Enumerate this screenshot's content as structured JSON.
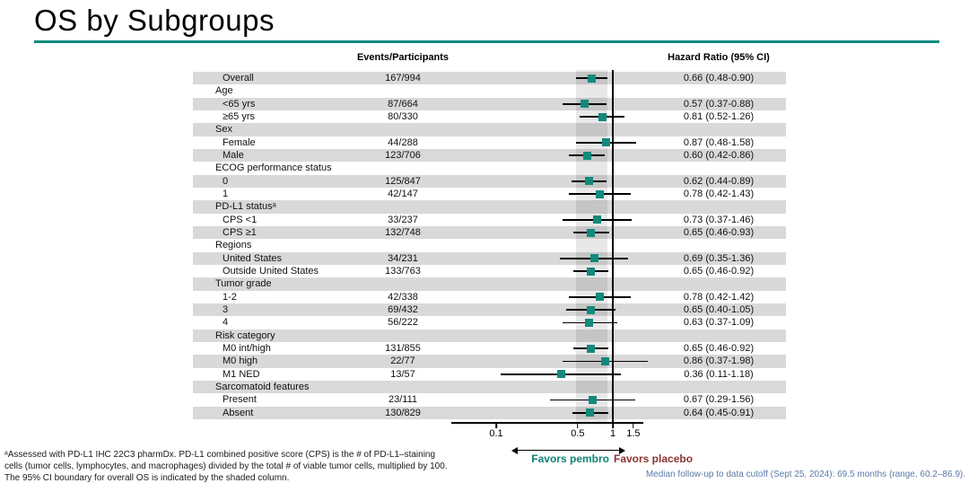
{
  "slide": {
    "title": "OS by Subgroups",
    "accent_color": "#0e8a80"
  },
  "chart_data": {
    "type": "forest",
    "scale": "log",
    "xlim": [
      0.041,
      1.83
    ],
    "x_ticks": [
      0.1,
      0.5,
      1,
      1.5
    ],
    "reference_line": 1.0,
    "shaded_column": {
      "lo": 0.48,
      "hi": 0.9
    },
    "marker_color": "#13897c",
    "band_color": "#d9d9d9",
    "columns": {
      "events": "Events/Participants",
      "hr": "Hazard Ratio (95% CI)"
    },
    "rows": [
      {
        "type": "item",
        "label": "Overall",
        "events": "167/994",
        "hr": 0.66,
        "lo": 0.48,
        "hi": 0.9,
        "hr_text": "0.66 (0.48-0.90)"
      },
      {
        "type": "group",
        "label": "Age"
      },
      {
        "type": "item",
        "label": "<65 yrs",
        "events": "87/664",
        "hr": 0.57,
        "lo": 0.37,
        "hi": 0.88,
        "hr_text": "0.57 (0.37-0.88)"
      },
      {
        "type": "item",
        "label": "≥65 yrs",
        "events": "80/330",
        "hr": 0.81,
        "lo": 0.52,
        "hi": 1.26,
        "hr_text": "0.81 (0.52-1.26)"
      },
      {
        "type": "group",
        "label": "Sex"
      },
      {
        "type": "item",
        "label": "Female",
        "events": "44/288",
        "hr": 0.87,
        "lo": 0.48,
        "hi": 1.58,
        "hr_text": "0.87 (0.48-1.58)"
      },
      {
        "type": "item",
        "label": "Male",
        "events": "123/706",
        "hr": 0.6,
        "lo": 0.42,
        "hi": 0.86,
        "hr_text": "0.60 (0.42-0.86)"
      },
      {
        "type": "group",
        "label": "ECOG performance status"
      },
      {
        "type": "item",
        "label": "0",
        "events": "125/847",
        "hr": 0.62,
        "lo": 0.44,
        "hi": 0.89,
        "hr_text": "0.62 (0.44-0.89)"
      },
      {
        "type": "item",
        "label": "1",
        "events": "42/147",
        "hr": 0.78,
        "lo": 0.42,
        "hi": 1.43,
        "hr_text": "0.78 (0.42-1.43)"
      },
      {
        "type": "group",
        "label": "PD-L1 statusᵃ"
      },
      {
        "type": "item",
        "label": "CPS <1",
        "events": "33/237",
        "hr": 0.73,
        "lo": 0.37,
        "hi": 1.46,
        "hr_text": "0.73 (0.37-1.46)"
      },
      {
        "type": "item",
        "label": "CPS ≥1",
        "events": "132/748",
        "hr": 0.65,
        "lo": 0.46,
        "hi": 0.93,
        "hr_text": "0.65 (0.46-0.93)"
      },
      {
        "type": "group",
        "label": "Regions"
      },
      {
        "type": "item",
        "label": "United States",
        "events": "34/231",
        "hr": 0.69,
        "lo": 0.35,
        "hi": 1.36,
        "hr_text": "0.69 (0.35-1.36)"
      },
      {
        "type": "item",
        "label": "Outside United States",
        "events": "133/763",
        "hr": 0.65,
        "lo": 0.46,
        "hi": 0.92,
        "hr_text": "0.65 (0.46-0.92)"
      },
      {
        "type": "group",
        "label": "Tumor grade"
      },
      {
        "type": "item",
        "label": "1-2",
        "events": "42/338",
        "hr": 0.78,
        "lo": 0.42,
        "hi": 1.42,
        "hr_text": "0.78 (0.42-1.42)"
      },
      {
        "type": "item",
        "label": "3",
        "events": "69/432",
        "hr": 0.65,
        "lo": 0.4,
        "hi": 1.05,
        "hr_text": "0.65 (0.40-1.05)"
      },
      {
        "type": "item",
        "label": "4",
        "events": "56/222",
        "hr": 0.63,
        "lo": 0.37,
        "hi": 1.09,
        "hr_text": "0.63 (0.37-1.09)"
      },
      {
        "type": "group",
        "label": "Risk category"
      },
      {
        "type": "item",
        "label": "M0 int/high",
        "events": "131/855",
        "hr": 0.65,
        "lo": 0.46,
        "hi": 0.92,
        "hr_text": "0.65 (0.46-0.92)"
      },
      {
        "type": "item",
        "label": "M0 high",
        "events": "22/77",
        "hr": 0.86,
        "lo": 0.37,
        "hi": 1.98,
        "hr_text": "0.86 (0.37-1.98)"
      },
      {
        "type": "item",
        "label": "M1 NED",
        "events": "13/57",
        "hr": 0.36,
        "lo": 0.11,
        "hi": 1.18,
        "hr_text": "0.36 (0.11-1.18)"
      },
      {
        "type": "group",
        "label": "Sarcomatoid features"
      },
      {
        "type": "item",
        "label": "Present",
        "events": "23/111",
        "hr": 0.67,
        "lo": 0.29,
        "hi": 1.56,
        "hr_text": "0.67 (0.29-1.56)"
      },
      {
        "type": "item",
        "label": "Absent",
        "events": "130/829",
        "hr": 0.64,
        "lo": 0.45,
        "hi": 0.91,
        "hr_text": "0.64 (0.45-0.91)"
      }
    ]
  },
  "favors": {
    "left": "Favors pembro",
    "right": "Favors placebo",
    "left_color": "#0e8276",
    "right_color": "#8c3332"
  },
  "footnotes": {
    "left": [
      "ᵃAssessed with PD-L1 IHC 22C3 pharmDx. PD-L1 combined positive score (CPS) is the # of PD-L1–staining",
      "cells (tumor cells, lymphocytes, and macrophages) divided by the total # of viable tumor cells, multiplied by 100.",
      "The 95% CI boundary for overall OS is indicated by the shaded column."
    ],
    "right": "Median follow-up to data cutoff (Sept 25, 2024): 69.5 months (range, 60.2–86.9).",
    "right_color": "#5b7aa8"
  }
}
